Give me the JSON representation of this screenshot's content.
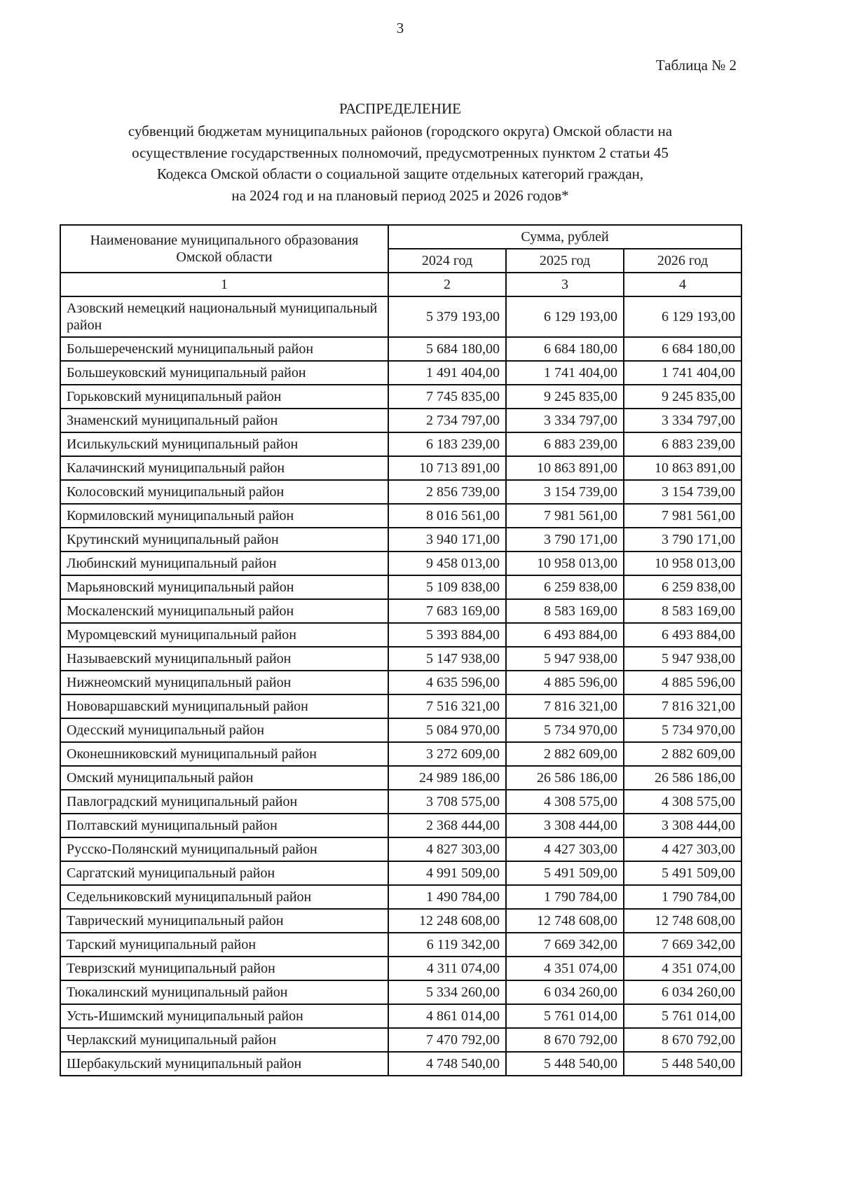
{
  "page": {
    "number": "3",
    "table_label": "Таблица № 2"
  },
  "title": {
    "heading": "РАСПРЕДЕЛЕНИЕ",
    "lines": [
      "субвенций бюджетам муниципальных районов (городского округа) Омской области на",
      "осуществление государственных полномочий, предусмотренных пунктом 2 статьи 45",
      "Кодекса Омской области о социальной защите отдельных категорий граждан,",
      "на 2024 год и на плановый период 2025 и 2026 годов*"
    ]
  },
  "table": {
    "name_column_header": "Наименование муниципального образования Омской области",
    "sum_header": "Сумма, рублей",
    "year_headers": [
      "2024 год",
      "2025 год",
      "2026 год"
    ],
    "index_row": [
      "1",
      "2",
      "3",
      "4"
    ],
    "rows": [
      {
        "name": "Азовский немецкий национальный муниципальный район",
        "values": [
          "5 379 193,00",
          "6 129 193,00",
          "6 129 193,00"
        ]
      },
      {
        "name": "Большереченский муниципальный район",
        "values": [
          "5 684 180,00",
          "6 684 180,00",
          "6 684 180,00"
        ]
      },
      {
        "name": "Большеуковский муниципальный район",
        "values": [
          "1 491 404,00",
          "1 741 404,00",
          "1 741 404,00"
        ]
      },
      {
        "name": "Горьковский муниципальный район",
        "values": [
          "7 745 835,00",
          "9 245 835,00",
          "9 245 835,00"
        ]
      },
      {
        "name": "Знаменский муниципальный район",
        "values": [
          "2 734 797,00",
          "3 334 797,00",
          "3 334 797,00"
        ]
      },
      {
        "name": "Исилькульский муниципальный район",
        "values": [
          "6 183 239,00",
          "6 883 239,00",
          "6 883 239,00"
        ]
      },
      {
        "name": "Калачинский муниципальный район",
        "values": [
          "10 713 891,00",
          "10 863 891,00",
          "10 863 891,00"
        ]
      },
      {
        "name": "Колосовский муниципальный район",
        "values": [
          "2 856 739,00",
          "3 154 739,00",
          "3 154 739,00"
        ]
      },
      {
        "name": "Кормиловский муниципальный район",
        "values": [
          "8 016 561,00",
          "7 981 561,00",
          "7 981 561,00"
        ]
      },
      {
        "name": "Крутинский муниципальный район",
        "values": [
          "3 940 171,00",
          "3 790 171,00",
          "3 790 171,00"
        ]
      },
      {
        "name": "Любинский муниципальный район",
        "values": [
          "9 458 013,00",
          "10 958 013,00",
          "10 958 013,00"
        ]
      },
      {
        "name": "Марьяновский муниципальный район",
        "values": [
          "5 109 838,00",
          "6 259 838,00",
          "6 259 838,00"
        ]
      },
      {
        "name": "Москаленский муниципальный район",
        "values": [
          "7 683 169,00",
          "8 583 169,00",
          "8 583 169,00"
        ]
      },
      {
        "name": "Муромцевский муниципальный район",
        "values": [
          "5 393 884,00",
          "6 493 884,00",
          "6 493 884,00"
        ]
      },
      {
        "name": "Называевский муниципальный район",
        "values": [
          "5 147 938,00",
          "5 947 938,00",
          "5 947 938,00"
        ]
      },
      {
        "name": "Нижнеомский муниципальный район",
        "values": [
          "4 635 596,00",
          "4 885 596,00",
          "4 885 596,00"
        ]
      },
      {
        "name": "Нововаршавский муниципальный район",
        "values": [
          "7 516 321,00",
          "7 816 321,00",
          "7 816 321,00"
        ]
      },
      {
        "name": "Одесский муниципальный район",
        "values": [
          "5 084 970,00",
          "5 734 970,00",
          "5 734 970,00"
        ]
      },
      {
        "name": "Оконешниковский муниципальный район",
        "values": [
          "3 272 609,00",
          "2 882 609,00",
          "2 882 609,00"
        ]
      },
      {
        "name": "Омский муниципальный район",
        "values": [
          "24 989 186,00",
          "26 586 186,00",
          "26 586 186,00"
        ]
      },
      {
        "name": "Павлоградский муниципальный район",
        "values": [
          "3 708 575,00",
          "4 308 575,00",
          "4 308 575,00"
        ]
      },
      {
        "name": "Полтавский муниципальный район",
        "values": [
          "2 368 444,00",
          "3 308 444,00",
          "3 308 444,00"
        ]
      },
      {
        "name": "Русско-Полянский муниципальный район",
        "values": [
          "4 827 303,00",
          "4 427 303,00",
          "4 427 303,00"
        ]
      },
      {
        "name": "Саргатский муниципальный район",
        "values": [
          "4 991 509,00",
          "5 491 509,00",
          "5 491 509,00"
        ]
      },
      {
        "name": "Седельниковский муниципальный район",
        "values": [
          "1 490 784,00",
          "1 790 784,00",
          "1 790 784,00"
        ]
      },
      {
        "name": "Таврический муниципальный район",
        "values": [
          "12 248 608,00",
          "12 748 608,00",
          "12 748 608,00"
        ]
      },
      {
        "name": "Тарский муниципальный район",
        "values": [
          "6 119 342,00",
          "7 669 342,00",
          "7 669 342,00"
        ]
      },
      {
        "name": "Тевризский муниципальный район",
        "values": [
          "4 311 074,00",
          "4 351 074,00",
          "4 351 074,00"
        ]
      },
      {
        "name": "Тюкалинский муниципальный район",
        "values": [
          "5 334 260,00",
          "6 034 260,00",
          "6 034 260,00"
        ]
      },
      {
        "name": "Усть-Ишимский муниципальный район",
        "values": [
          "4 861 014,00",
          "5 761 014,00",
          "5 761 014,00"
        ]
      },
      {
        "name": "Черлакский муниципальный район",
        "values": [
          "7 470 792,00",
          "8 670 792,00",
          "8 670 792,00"
        ]
      },
      {
        "name": "Шербакульский муниципальный район",
        "values": [
          "4 748 540,00",
          "5 448 540,00",
          "5 448 540,00"
        ]
      }
    ]
  }
}
